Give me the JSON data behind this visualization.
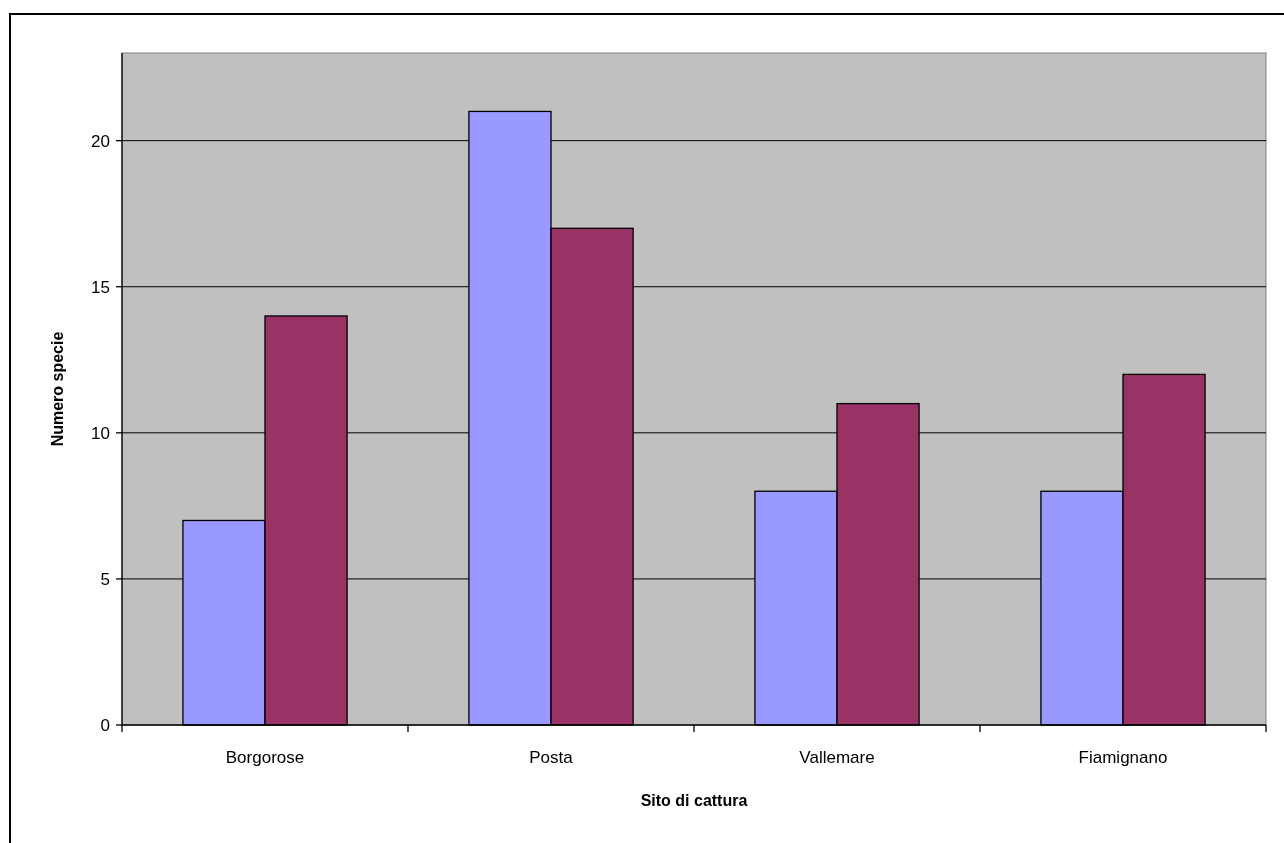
{
  "chart_data": {
    "type": "bar",
    "xlabel": "Sito di cattura",
    "ylabel": "Numero specie",
    "categories": [
      "Borgorose",
      "Posta",
      "Vallemare",
      "Fiamignano"
    ],
    "series": [
      {
        "color": "#9999ff",
        "values": [
          7,
          21,
          8,
          8
        ]
      },
      {
        "color": "#993366",
        "values": [
          14,
          17,
          11,
          12
        ]
      }
    ],
    "ylim": [
      0,
      23
    ],
    "yticks": [
      0,
      5,
      10,
      15,
      20
    ],
    "grid": "y"
  }
}
